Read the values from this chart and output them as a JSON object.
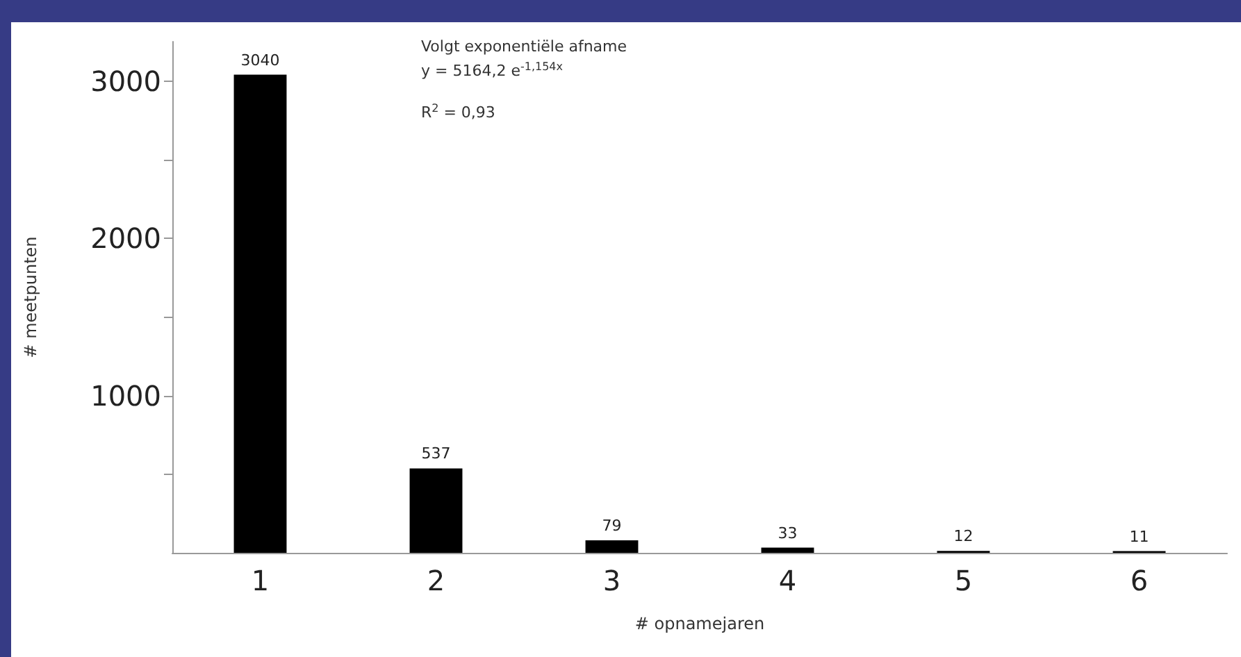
{
  "chart_data": {
    "type": "bar",
    "xlabel": "# opnamejaren",
    "ylabel": "# meetpunten",
    "categories": [
      "1",
      "2",
      "3",
      "4",
      "5",
      "6"
    ],
    "values": [
      3040,
      537,
      79,
      33,
      12,
      11
    ],
    "color": "#000000",
    "data_labels": true,
    "ylim": [
      0,
      3250
    ],
    "yticks": [
      {
        "value": 500,
        "label": null
      },
      1000,
      {
        "value": 1500,
        "label": null
      },
      2000,
      {
        "value": 2500,
        "label": null
      },
      3000
    ],
    "grid": false,
    "annotations": [
      "Volgt exponentiële afname",
      "y = 5164,2 e$^{-1,154x}$",
      "R$^{2}$ = 0,93"
    ]
  }
}
